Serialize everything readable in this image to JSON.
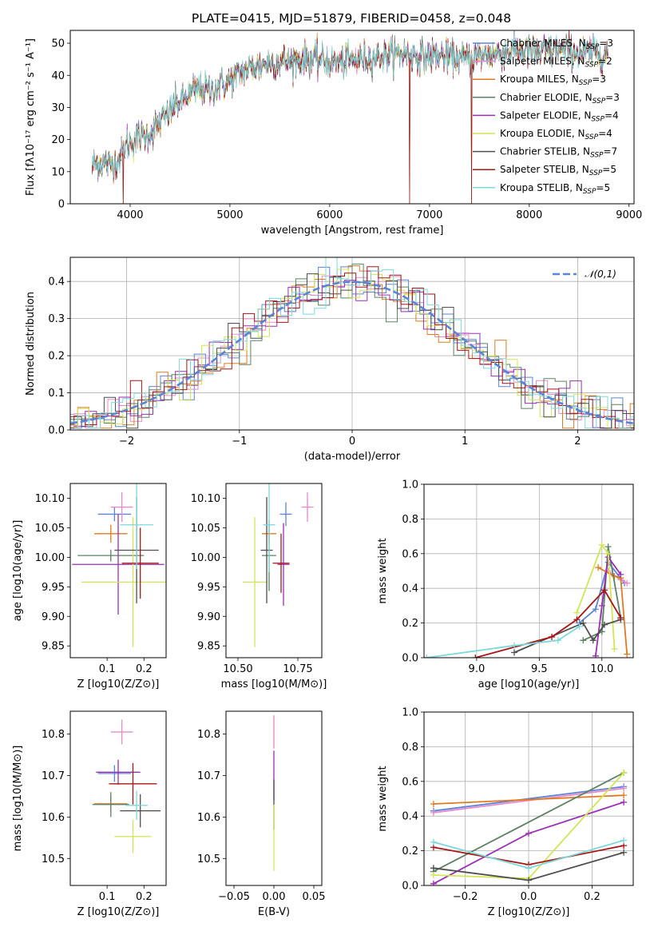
{
  "title": "PLATE=0415, MJD=51879, FIBERID=0458, z=0.048",
  "models": [
    {
      "name": "Chabrier MILES",
      "nssp": "3",
      "color": "#5b84d9"
    },
    {
      "name": "Salpeter MILES",
      "nssp": "2",
      "color": "#e889c8"
    },
    {
      "name": "Kroupa MILES",
      "nssp": "3",
      "color": "#e07a22"
    },
    {
      "name": "Chabrier ELODIE",
      "nssp": "3",
      "color": "#5b8264"
    },
    {
      "name": "Salpeter ELODIE",
      "nssp": "4",
      "color": "#9a2fb4"
    },
    {
      "name": "Kroupa ELODIE",
      "nssp": "4",
      "color": "#d3e455"
    },
    {
      "name": "Chabrier STELIB",
      "nssp": "7",
      "color": "#4f4f4f"
    },
    {
      "name": "Salpeter STELIB",
      "nssp": "5",
      "color": "#a81616"
    },
    {
      "name": "Kroupa STELIB",
      "nssp": "5",
      "color": "#7ed8da"
    }
  ],
  "legend_nssp_prefix": "N",
  "legend_nssp_sub": "SSP",
  "chart_data": [
    {
      "id": "spectrum",
      "type": "line",
      "xlabel": "wavelength [Angstrom, rest frame]",
      "ylabel": "Flux [fλ10⁻¹⁷ erg cm⁻² s⁻¹ A⁻¹]",
      "xlim": [
        3400,
        9050
      ],
      "ylim": [
        0,
        54
      ],
      "xticks": [
        4000,
        5000,
        6000,
        7000,
        8000,
        9000
      ],
      "yticks": [
        0,
        10,
        20,
        30,
        40,
        50
      ],
      "legend": "upper right",
      "wavelength_range": [
        3620,
        8790
      ],
      "continuum_points": [
        [
          3620,
          12
        ],
        [
          3700,
          13
        ],
        [
          3800,
          12
        ],
        [
          3900,
          14
        ],
        [
          3950,
          18
        ],
        [
          4000,
          19
        ],
        [
          4100,
          21
        ],
        [
          4200,
          22
        ],
        [
          4300,
          25
        ],
        [
          4400,
          29
        ],
        [
          4500,
          32
        ],
        [
          4600,
          34
        ],
        [
          4700,
          36
        ],
        [
          4800,
          35
        ],
        [
          4900,
          37
        ],
        [
          5000,
          38
        ],
        [
          5100,
          41
        ],
        [
          5200,
          42
        ],
        [
          5300,
          43
        ],
        [
          5400,
          44
        ],
        [
          5500,
          44
        ],
        [
          5700,
          45
        ],
        [
          5900,
          45
        ],
        [
          6100,
          44
        ],
        [
          6300,
          45
        ],
        [
          6500,
          46
        ],
        [
          6700,
          47
        ],
        [
          6900,
          46
        ],
        [
          7100,
          46
        ],
        [
          7300,
          45
        ],
        [
          7500,
          46
        ],
        [
          7700,
          47
        ],
        [
          7900,
          48
        ],
        [
          8100,
          47
        ],
        [
          8300,
          48
        ],
        [
          8500,
          47
        ],
        [
          8790,
          47
        ]
      ],
      "deep_dips": [
        [
          3930,
          0
        ],
        [
          6800,
          0
        ],
        [
          7420,
          0
        ]
      ]
    },
    {
      "id": "residuals",
      "type": "histogram",
      "xlabel": "(data-model)/error",
      "ylabel": "Normed distribution",
      "xlim": [
        -2.5,
        2.5
      ],
      "ylim": [
        0,
        0.465
      ],
      "xticks": [
        -2,
        -1,
        0,
        1,
        2
      ],
      "yticks": [
        0.0,
        0.1,
        0.2,
        0.3,
        0.4
      ],
      "grid": true,
      "bin_width": 0.1,
      "reference_curve": {
        "name": "𝒩(0,1)",
        "style": "dashed",
        "color": "#5b84d9"
      },
      "legend": "upper right"
    },
    {
      "id": "age_vs_Z",
      "type": "scatter",
      "xlabel": "Z [log10(Z/Z⊙)]",
      "ylabel": "age  [log10(age/yr)]",
      "xlim": [
        0.0,
        0.26
      ],
      "ylim": [
        9.83,
        10.125
      ],
      "xticks": [
        0.1,
        0.2
      ],
      "yticks": [
        9.85,
        9.9,
        9.95,
        10.0,
        10.05,
        10.1
      ],
      "points": [
        {
          "x": 0.12,
          "y": 10.073,
          "xerr": 0.045,
          "yerr": 0.012
        },
        {
          "x": 0.14,
          "y": 10.085,
          "xerr": 0.03,
          "yerr": 0.025
        },
        {
          "x": 0.11,
          "y": 10.04,
          "xerr": 0.045,
          "yerr": 0.015
        },
        {
          "x": 0.11,
          "y": 10.003,
          "xerr": 0.09,
          "yerr": 0.01
        },
        {
          "x": 0.13,
          "y": 9.988,
          "xerr": 0.125,
          "yerr": 0.085
        },
        {
          "x": 0.17,
          "y": 9.958,
          "xerr": 0.14,
          "yerr": 0.11
        },
        {
          "x": 0.18,
          "y": 10.012,
          "xerr": 0.06,
          "yerr": 0.09
        },
        {
          "x": 0.19,
          "y": 9.99,
          "xerr": 0.05,
          "yerr": 0.06
        },
        {
          "x": 0.18,
          "y": 10.055,
          "xerr": 0.045,
          "yerr": 0.075
        }
      ]
    },
    {
      "id": "age_vs_mass",
      "type": "scatter",
      "xlabel": "mass [log10(M/M⊙)]",
      "ylabel": "",
      "xlim": [
        10.45,
        10.85
      ],
      "ylim": [
        9.83,
        10.125
      ],
      "xticks": [
        10.5,
        10.75
      ],
      "yticks": [
        9.85,
        9.9,
        9.95,
        10.0,
        10.05,
        10.1
      ],
      "points": [
        {
          "x": 10.7,
          "y": 10.073,
          "xerr": 0.025,
          "yerr": 0.02
        },
        {
          "x": 10.79,
          "y": 10.085,
          "xerr": 0.025,
          "yerr": 0.025
        },
        {
          "x": 10.63,
          "y": 10.04,
          "xerr": 0.03,
          "yerr": 0.015
        },
        {
          "x": 10.63,
          "y": 10.003,
          "xerr": 0.03,
          "yerr": 0.06
        },
        {
          "x": 10.69,
          "y": 9.988,
          "xerr": 0.025,
          "yerr": 0.07
        },
        {
          "x": 10.57,
          "y": 9.958,
          "xerr": 0.05,
          "yerr": 0.11
        },
        {
          "x": 10.62,
          "y": 10.012,
          "xerr": 0.025,
          "yerr": 0.09
        },
        {
          "x": 10.68,
          "y": 9.99,
          "xerr": 0.035,
          "yerr": 0.05
        },
        {
          "x": 10.63,
          "y": 10.055,
          "xerr": 0.025,
          "yerr": 0.08
        }
      ]
    },
    {
      "id": "mass_weight_vs_age",
      "type": "line",
      "xlabel": "age  [log10(age/yr)]",
      "ylabel": "mass weight",
      "xlim": [
        8.58,
        10.25
      ],
      "ylim": [
        0,
        1.0
      ],
      "xticks": [
        9.0,
        9.5,
        10.0
      ],
      "yticks": [
        0.0,
        0.2,
        0.4,
        0.6,
        0.8,
        1.0
      ],
      "grid": true,
      "series": [
        {
          "x": [
            9.82,
            9.95,
            10.05,
            10.18
          ],
          "y": [
            0.2,
            0.28,
            0.55,
            0.43
          ]
        },
        {
          "x": [
            10.05,
            10.15,
            10.2
          ],
          "y": [
            0.5,
            0.45,
            0.43
          ]
        },
        {
          "x": [
            9.97,
            10.1,
            10.15,
            10.2
          ],
          "y": [
            0.52,
            0.47,
            0.46,
            0.02
          ]
        },
        {
          "x": [
            9.85,
            10.0,
            10.05,
            10.15
          ],
          "y": [
            0.1,
            0.15,
            0.64,
            0.23
          ]
        },
        {
          "x": [
            9.95,
            10.0,
            10.05,
            10.15
          ],
          "y": [
            0.01,
            0.3,
            0.58,
            0.48
          ]
        },
        {
          "x": [
            9.8,
            10.0,
            10.05,
            10.1
          ],
          "y": [
            0.26,
            0.65,
            0.6,
            0.05
          ]
        },
        {
          "x": [
            9.3,
            9.85,
            9.93,
            10.02,
            10.15
          ],
          "y": [
            0.03,
            0.2,
            0.1,
            0.19,
            0.22
          ]
        },
        {
          "x": [
            8.99,
            9.6,
            9.8,
            10.02,
            10.15
          ],
          "y": [
            0.0,
            0.12,
            0.22,
            0.39,
            0.23
          ]
        },
        {
          "x": [
            8.6,
            9.3,
            9.65,
            9.82
          ],
          "y": [
            0.0,
            0.07,
            0.1,
            0.18
          ]
        }
      ]
    },
    {
      "id": "mass_vs_Z",
      "type": "scatter",
      "xlabel": "Z [log10(Z/Z⊙)]",
      "ylabel": "mass [log10(M/M⊙)]",
      "xlim": [
        0.0,
        0.26
      ],
      "ylim": [
        10.435,
        10.855
      ],
      "xticks": [
        0.1,
        0.2
      ],
      "yticks": [
        10.5,
        10.6,
        10.7,
        10.8
      ],
      "points": [
        {
          "x": 0.12,
          "y": 10.705,
          "xerr": 0.045,
          "yerr": 0.02
        },
        {
          "x": 0.14,
          "y": 10.805,
          "xerr": 0.03,
          "yerr": 0.03
        },
        {
          "x": 0.11,
          "y": 10.632,
          "xerr": 0.045,
          "yerr": 0.02
        },
        {
          "x": 0.11,
          "y": 10.63,
          "xerr": 0.05,
          "yerr": 0.03
        },
        {
          "x": 0.13,
          "y": 10.708,
          "xerr": 0.06,
          "yerr": 0.03
        },
        {
          "x": 0.17,
          "y": 10.553,
          "xerr": 0.05,
          "yerr": 0.04
        },
        {
          "x": 0.19,
          "y": 10.615,
          "xerr": 0.055,
          "yerr": 0.04
        },
        {
          "x": 0.17,
          "y": 10.68,
          "xerr": 0.065,
          "yerr": 0.05
        },
        {
          "x": 0.18,
          "y": 10.628,
          "xerr": 0.03,
          "yerr": 0.035
        }
      ]
    },
    {
      "id": "mass_vs_EBV",
      "type": "scatter",
      "xlabel": "E(B-V)",
      "ylabel": "",
      "xlim": [
        -0.06,
        0.06
      ],
      "ylim": [
        10.435,
        10.855
      ],
      "xticks": [
        -0.05,
        0.0,
        0.05
      ],
      "yticks": [
        10.5,
        10.6,
        10.7,
        10.8
      ],
      "points": [
        {
          "x": 0.0,
          "y": 10.805,
          "xerr": 0.0,
          "yerr": 0.04
        },
        {
          "x": 0.0,
          "y": 10.7,
          "xerr": 0.0,
          "yerr": 0.06
        },
        {
          "x": 0.0,
          "y": 10.63,
          "xerr": 0.0,
          "yerr": 0.06
        },
        {
          "x": 0.0,
          "y": 10.55,
          "xerr": 0.0,
          "yerr": 0.08
        }
      ]
    },
    {
      "id": "mass_weight_vs_Z",
      "type": "line",
      "xlabel": "Z [log10(Z/Z⊙)]",
      "ylabel": "mass weight",
      "xlim": [
        -0.33,
        0.33
      ],
      "ylim": [
        0,
        1.0
      ],
      "xticks": [
        -0.2,
        0.0,
        0.2
      ],
      "yticks": [
        0.0,
        0.2,
        0.4,
        0.6,
        0.8,
        1.0
      ],
      "grid": true,
      "series": [
        {
          "x": [
            -0.3,
            0.3
          ],
          "y": [
            0.43,
            0.57
          ]
        },
        {
          "x": [
            -0.3,
            0.3
          ],
          "y": [
            0.42,
            0.56
          ]
        },
        {
          "x": [
            -0.3,
            0.3
          ],
          "y": [
            0.47,
            0.52
          ]
        },
        {
          "x": [
            -0.3,
            0.3
          ],
          "y": [
            0.08,
            0.65
          ]
        },
        {
          "x": [
            -0.3,
            0.0,
            0.3
          ],
          "y": [
            0.01,
            0.3,
            0.48
          ]
        },
        {
          "x": [
            -0.3,
            0.0,
            0.3
          ],
          "y": [
            0.06,
            0.04,
            0.65
          ]
        },
        {
          "x": [
            -0.3,
            0.0,
            0.3
          ],
          "y": [
            0.1,
            0.03,
            0.19
          ]
        },
        {
          "x": [
            -0.3,
            0.0,
            0.3
          ],
          "y": [
            0.22,
            0.12,
            0.23
          ]
        },
        {
          "x": [
            -0.3,
            0.0,
            0.3
          ],
          "y": [
            0.25,
            0.1,
            0.26
          ]
        }
      ]
    }
  ]
}
